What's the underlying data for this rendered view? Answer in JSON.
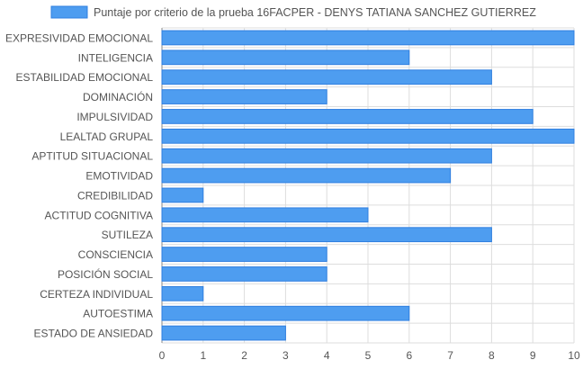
{
  "chart_data": {
    "type": "bar",
    "orientation": "horizontal",
    "legend": {
      "label": "Puntaje por criterio de la prueba 16FACPER - DENYS TATIANA SANCHEZ GUTIERREZ",
      "position": "top"
    },
    "categories": [
      "EXPRESIVIDAD EMOCIONAL",
      "INTELIGENCIA",
      "ESTABILIDAD EMOCIONAL",
      "DOMINACIÓN",
      "IMPULSIVIDAD",
      "LEALTAD GRUPAL",
      "APTITUD SITUACIONAL",
      "EMOTIVIDAD",
      "CREDIBILIDAD",
      "ACTITUD COGNITIVA",
      "SUTILEZA",
      "CONSCIENCIA",
      "POSICIÓN SOCIAL",
      "CERTEZA INDIVIDUAL",
      "AUTOESTIMA",
      "ESTADO DE ANSIEDAD"
    ],
    "values": [
      10,
      6,
      8,
      4,
      9,
      10,
      8,
      7,
      1,
      5,
      8,
      4,
      4,
      1,
      6,
      3
    ],
    "xlim": [
      0,
      10
    ],
    "xticks": [
      "0",
      "1",
      "2",
      "3",
      "4",
      "5",
      "6",
      "7",
      "8",
      "9",
      "10"
    ],
    "grid": true,
    "colors": {
      "bar_fill": "#4e9df0",
      "bar_stroke": "#2f7fe0",
      "grid": "#dddddd",
      "text": "#555555"
    }
  }
}
